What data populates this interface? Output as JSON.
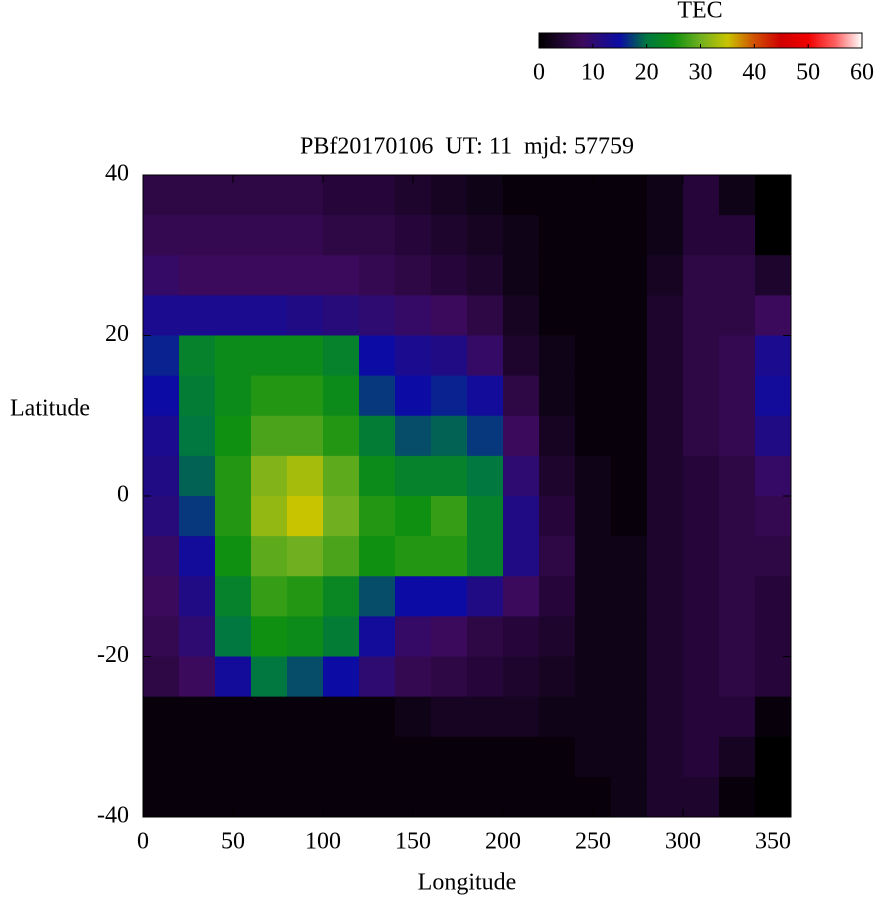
{
  "chart_data": {
    "type": "heatmap",
    "title": "PBf20170106  UT: 11  mjd: 57759",
    "xlabel": "Longitude",
    "ylabel": "Latitude",
    "colorbar_label": "TEC",
    "xlim": [
      0,
      360
    ],
    "ylim": [
      -40,
      40
    ],
    "xticks": [
      0,
      50,
      100,
      150,
      200,
      250,
      300,
      350
    ],
    "yticks": [
      -40,
      -20,
      0,
      20,
      40
    ],
    "clim": [
      0,
      60
    ],
    "cticks": [
      0,
      10,
      20,
      30,
      40,
      50,
      60
    ],
    "colormap": [
      {
        "value": 0,
        "color": "#000000"
      },
      {
        "value": 8,
        "color": "#3c0a5c"
      },
      {
        "value": 15,
        "color": "#0c0ca4"
      },
      {
        "value": 20,
        "color": "#007840"
      },
      {
        "value": 25,
        "color": "#109010"
      },
      {
        "value": 30,
        "color": "#70b020"
      },
      {
        "value": 35,
        "color": "#c8c400"
      },
      {
        "value": 40,
        "color": "#d05000"
      },
      {
        "value": 45,
        "color": "#d00000"
      },
      {
        "value": 50,
        "color": "#f00000"
      },
      {
        "value": 55,
        "color": "#ff6060"
      },
      {
        "value": 60,
        "color": "#ffffff"
      }
    ],
    "x": [
      10,
      30,
      50,
      70,
      90,
      110,
      130,
      150,
      170,
      190,
      210,
      230,
      250,
      270,
      290,
      310,
      330,
      350
    ],
    "y": [
      37.5,
      32.5,
      27.5,
      22.5,
      17.5,
      12.5,
      7.5,
      2.5,
      -2.5,
      -7.5,
      -12.5,
      -17.5,
      -22.5,
      -27.5,
      -32.5,
      -37.5
    ],
    "z": [
      [
        6,
        6,
        6,
        6,
        6,
        5,
        5,
        4,
        3,
        2,
        1,
        1,
        1,
        1,
        2,
        5,
        2,
        0
      ],
      [
        7,
        7,
        7,
        7,
        7,
        6,
        6,
        5,
        4,
        3,
        2,
        1,
        1,
        1,
        2,
        5,
        5,
        0
      ],
      [
        9,
        8,
        8,
        8,
        8,
        8,
        7,
        6,
        5,
        4,
        2,
        1,
        1,
        1,
        3,
        6,
        6,
        4
      ],
      [
        13,
        13,
        13,
        13,
        12,
        11,
        10,
        9,
        8,
        6,
        3,
        1,
        1,
        1,
        4,
        6,
        6,
        8
      ],
      [
        16,
        22,
        24,
        24,
        24,
        22,
        15,
        13,
        12,
        9,
        4,
        2,
        1,
        1,
        4,
        6,
        7,
        13
      ],
      [
        15,
        21,
        24,
        26,
        26,
        24,
        17,
        15,
        16,
        14,
        6,
        2,
        1,
        1,
        4,
        6,
        7,
        14
      ],
      [
        13,
        20,
        25,
        28,
        28,
        26,
        21,
        18,
        19,
        17,
        8,
        3,
        1,
        1,
        4,
        6,
        7,
        12
      ],
      [
        12,
        19,
        26,
        31,
        33,
        29,
        24,
        22,
        22,
        20,
        10,
        4,
        2,
        1,
        4,
        5,
        6,
        9
      ],
      [
        11,
        17,
        26,
        32,
        35,
        30,
        26,
        25,
        27,
        22,
        12,
        5,
        2,
        1,
        4,
        5,
        6,
        7
      ],
      [
        9,
        14,
        25,
        29,
        30,
        28,
        25,
        26,
        26,
        22,
        12,
        6,
        2,
        2,
        4,
        5,
        6,
        6
      ],
      [
        8,
        12,
        22,
        27,
        26,
        23,
        18,
        15,
        15,
        12,
        8,
        5,
        2,
        2,
        4,
        5,
        6,
        5
      ],
      [
        7,
        10,
        20,
        25,
        24,
        21,
        14,
        9,
        8,
        6,
        5,
        4,
        2,
        2,
        4,
        5,
        6,
        5
      ],
      [
        6,
        8,
        14,
        20,
        18,
        15,
        10,
        7,
        6,
        5,
        4,
        3,
        2,
        2,
        4,
        5,
        6,
        5
      ],
      [
        1,
        1,
        1,
        1,
        1,
        1,
        1,
        2,
        3,
        3,
        3,
        2,
        2,
        2,
        4,
        5,
        5,
        1
      ],
      [
        1,
        1,
        1,
        1,
        1,
        1,
        1,
        1,
        1,
        1,
        1,
        1,
        2,
        2,
        4,
        5,
        3,
        0
      ],
      [
        1,
        1,
        1,
        1,
        1,
        1,
        1,
        1,
        1,
        1,
        1,
        1,
        1,
        2,
        4,
        4,
        1,
        0
      ]
    ]
  }
}
